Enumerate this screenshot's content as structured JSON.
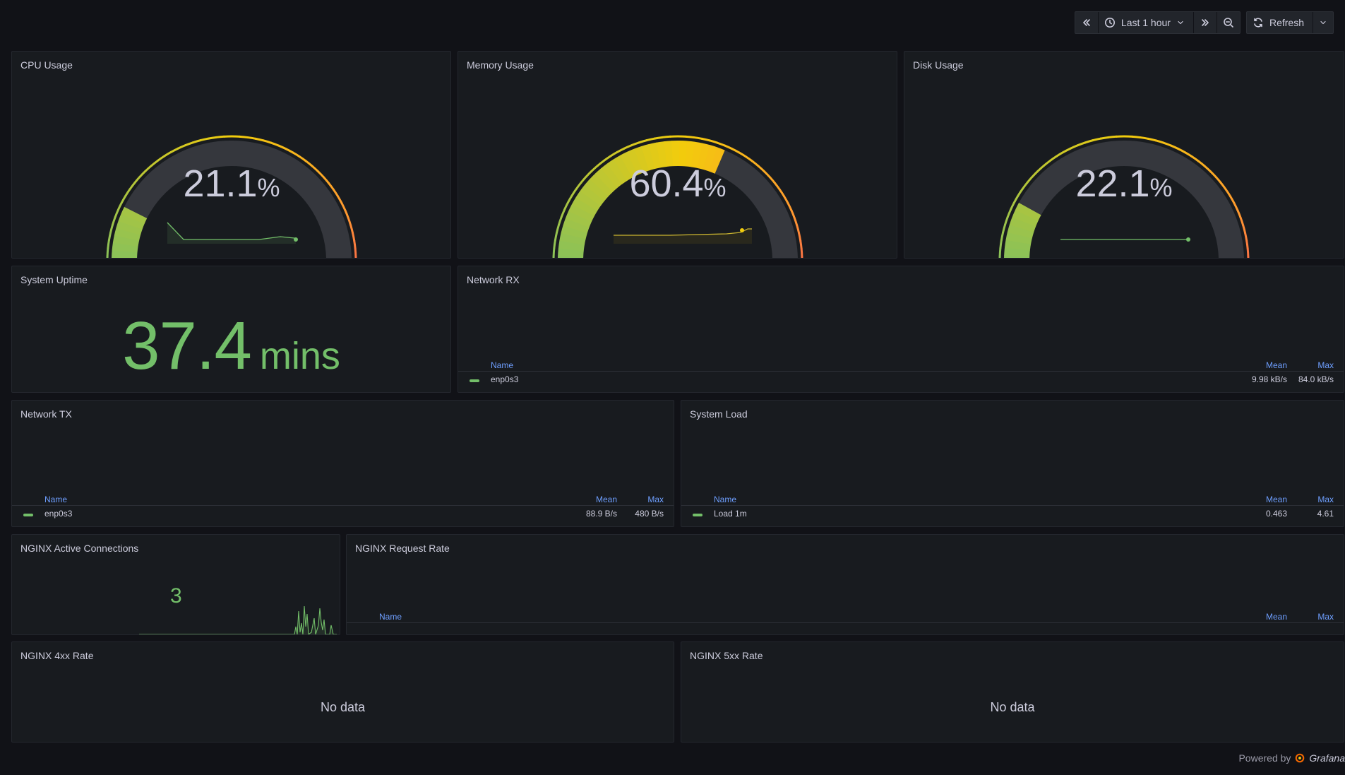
{
  "toolbar": {
    "time_range_label": "Last 1 hour",
    "refresh_label": "Refresh"
  },
  "panels": {
    "cpu": {
      "title": "CPU Usage",
      "value": "21.1",
      "unit": "%",
      "percent": 21.1
    },
    "memory": {
      "title": "Memory Usage",
      "value": "60.4",
      "unit": "%",
      "percent": 60.4
    },
    "disk": {
      "title": "Disk Usage",
      "value": "22.1",
      "unit": "%",
      "percent": 22.1
    },
    "uptime": {
      "title": "System Uptime",
      "value": "37.4",
      "unit": "mins"
    },
    "network_rx": {
      "title": "Network RX",
      "legend_headers": {
        "name": "Name",
        "mean": "Mean",
        "max": "Max"
      },
      "series": [
        {
          "name": "enp0s3",
          "mean": "9.98 kB/s",
          "max": "84.0 kB/s"
        }
      ]
    },
    "network_tx": {
      "title": "Network TX",
      "legend_headers": {
        "name": "Name",
        "mean": "Mean",
        "max": "Max"
      },
      "series": [
        {
          "name": "enp0s3",
          "mean": "88.9 B/s",
          "max": "480 B/s"
        }
      ]
    },
    "system_load": {
      "title": "System Load",
      "legend_headers": {
        "name": "Name",
        "mean": "Mean",
        "max": "Max"
      },
      "series": [
        {
          "name": "Load 1m",
          "mean": "0.463",
          "max": "4.61"
        }
      ]
    },
    "nginx_active": {
      "title": "NGINX Active Connections",
      "value": "3"
    },
    "nginx_rate": {
      "title": "NGINX Request Rate",
      "legend_headers": {
        "name": "Name",
        "mean": "Mean",
        "max": "Max"
      }
    },
    "nginx_4xx": {
      "title": "NGINX 4xx Rate",
      "message": "No data"
    },
    "nginx_5xx": {
      "title": "NGINX 5xx Rate",
      "message": "No data"
    }
  },
  "footer": {
    "powered_by": "Powered by",
    "brand": "Grafana"
  },
  "colors": {
    "green": "#73bf69",
    "yellow": "#f2cc0c",
    "red": "#f2495c",
    "track": "#35373d",
    "legend_header": "#6e9fff"
  },
  "icons": [
    "chevrons-left-icon",
    "clock-icon",
    "chevron-down-icon",
    "chevrons-right-icon",
    "zoom-out-icon",
    "sync-icon",
    "grafana-logo-icon"
  ]
}
